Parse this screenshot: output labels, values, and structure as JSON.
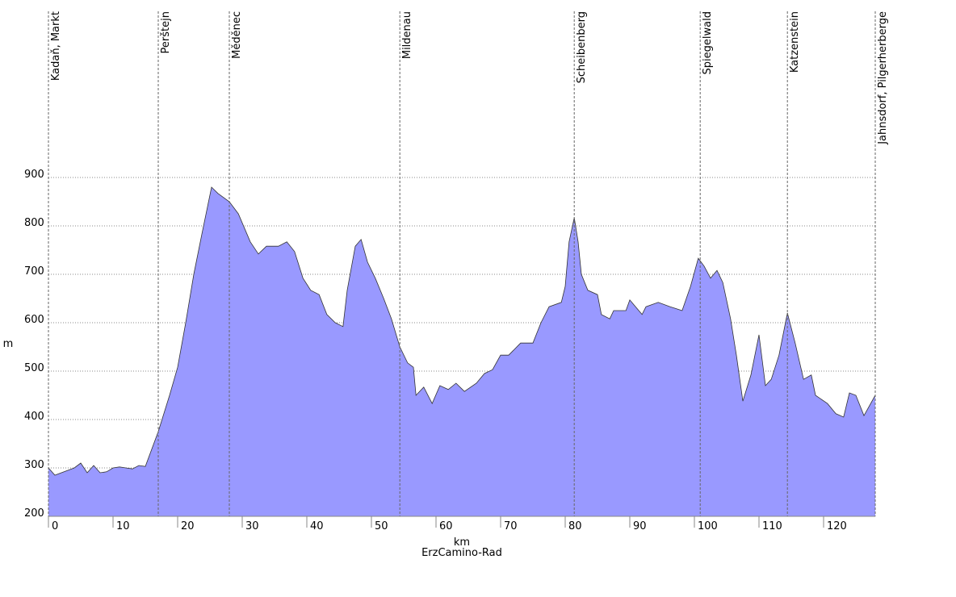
{
  "chart_data": {
    "type": "area",
    "x_label": "km",
    "y_label": "m",
    "subtitle": "ErzCamino-Rad",
    "color": "#9999ff",
    "x": [
      0,
      1,
      2,
      3,
      4,
      5,
      6,
      7,
      8,
      9,
      10,
      11,
      12,
      13,
      14,
      15,
      17,
      18.75,
      20,
      21.25,
      22.5,
      23.75,
      25.25,
      26.25,
      28,
      29.4,
      31.25,
      32.5,
      33.75,
      35.6,
      36.9,
      38.1,
      39.4,
      40.6,
      41.9,
      43.1,
      44.4,
      45.6,
      46.25,
      47.5,
      48.4,
      49.4,
      50.6,
      51.9,
      53.1,
      54.4,
      55.6,
      56.5,
      56.9,
      58.1,
      59.4,
      60.6,
      61.9,
      63.1,
      64.4,
      66.25,
      67.5,
      68.75,
      70,
      71.25,
      73.1,
      75,
      76.25,
      77.5,
      79.4,
      80,
      80.6,
      81.4,
      82,
      82.5,
      83.5,
      85,
      85.6,
      86.9,
      87.5,
      89.4,
      90,
      91.9,
      92.5,
      94.4,
      96.25,
      98.1,
      99.4,
      100.6,
      101.5,
      102.5,
      103.5,
      104.4,
      105.6,
      106.5,
      107.5,
      108.75,
      110,
      111,
      111.9,
      113.1,
      114.4,
      115.6,
      116.9,
      118.1,
      118.75,
      120.6,
      121.9,
      123.1,
      124,
      125,
      126.25,
      128
    ],
    "values": [
      300,
      285,
      290,
      295,
      300,
      310,
      290,
      305,
      290,
      292,
      300,
      302,
      300,
      298,
      305,
      303,
      375,
      450,
      508,
      600,
      700,
      783,
      880,
      867,
      850,
      825,
      767,
      742,
      758,
      758,
      767,
      747,
      692,
      667,
      658,
      617,
      600,
      592,
      667,
      758,
      772,
      725,
      692,
      650,
      608,
      550,
      517,
      508,
      450,
      467,
      433,
      470,
      462,
      475,
      458,
      475,
      495,
      503,
      533,
      533,
      558,
      558,
      600,
      633,
      642,
      675,
      767,
      817,
      767,
      700,
      667,
      658,
      617,
      608,
      625,
      625,
      647,
      617,
      633,
      642,
      633,
      625,
      675,
      733,
      717,
      692,
      708,
      683,
      608,
      533,
      438,
      492,
      575,
      470,
      483,
      533,
      620,
      558,
      483,
      492,
      450,
      433,
      412,
      405,
      455,
      450,
      408,
      450
    ],
    "xlim": [
      0,
      128
    ],
    "ylim": [
      200,
      900
    ],
    "xticks": [
      0,
      10,
      20,
      30,
      40,
      50,
      60,
      70,
      80,
      90,
      100,
      110,
      120
    ],
    "yticks": [
      200,
      300,
      400,
      500,
      600,
      700,
      800,
      900
    ],
    "grid": true,
    "waypoints": [
      {
        "name": "Kadaň, Markt",
        "x": 0
      },
      {
        "name": "Perštejn",
        "x": 17
      },
      {
        "name": "Měděnec",
        "x": 28
      },
      {
        "name": "Mildenau",
        "x": 54.4
      },
      {
        "name": "Scheibenberg",
        "x": 81.4
      },
      {
        "name": "Spiegelwald",
        "x": 100.9
      },
      {
        "name": "Katzenstein",
        "x": 114.4
      },
      {
        "name": "Jahnsdorf, Pilgerherberge",
        "x": 128
      }
    ]
  }
}
